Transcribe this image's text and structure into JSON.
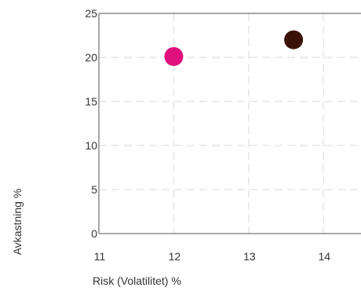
{
  "chart_data": {
    "type": "scatter",
    "xlabel": "Risk (Volatilitet) %",
    "ylabel": "Avkastning %",
    "xlim": [
      11,
      14.5
    ],
    "ylim": [
      0,
      25
    ],
    "xticks": [
      11,
      12,
      13,
      14
    ],
    "yticks": [
      0,
      5,
      10,
      15,
      20,
      25
    ],
    "grid": true,
    "series": [
      {
        "x": [
          12.0
        ],
        "y": [
          20.1
        ],
        "color": "#e0117f"
      },
      {
        "x": [
          13.6
        ],
        "y": [
          22.0
        ],
        "color": "#3a1204"
      }
    ],
    "colors": {
      "axis": "#8c8c8c",
      "grid": "#e6e6e6",
      "text": "#333333"
    }
  }
}
